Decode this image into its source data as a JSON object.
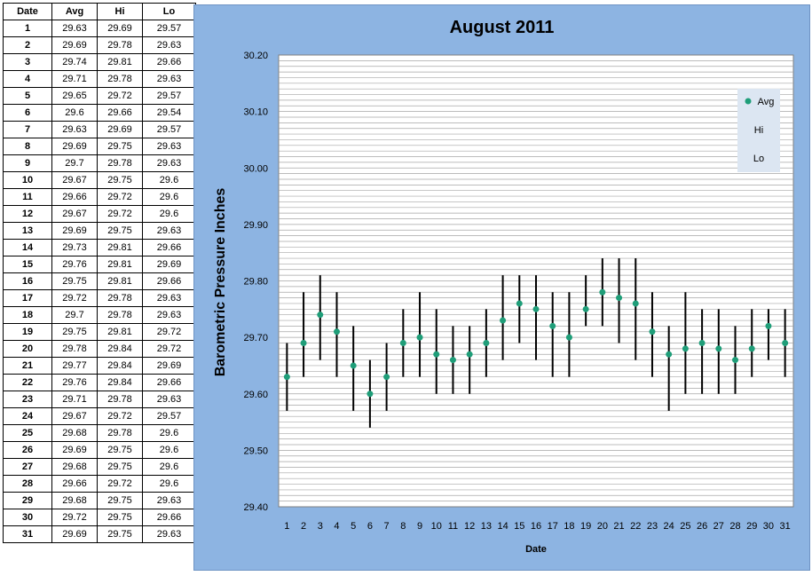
{
  "table": {
    "headers": [
      "Date",
      "Avg",
      "Hi",
      "Lo"
    ],
    "rows": [
      [
        "1",
        "29.63",
        "29.69",
        "29.57"
      ],
      [
        "2",
        "29.69",
        "29.78",
        "29.63"
      ],
      [
        "3",
        "29.74",
        "29.81",
        "29.66"
      ],
      [
        "4",
        "29.71",
        "29.78",
        "29.63"
      ],
      [
        "5",
        "29.65",
        "29.72",
        "29.57"
      ],
      [
        "6",
        "29.6",
        "29.66",
        "29.54"
      ],
      [
        "7",
        "29.63",
        "29.69",
        "29.57"
      ],
      [
        "8",
        "29.69",
        "29.75",
        "29.63"
      ],
      [
        "9",
        "29.7",
        "29.78",
        "29.63"
      ],
      [
        "10",
        "29.67",
        "29.75",
        "29.6"
      ],
      [
        "11",
        "29.66",
        "29.72",
        "29.6"
      ],
      [
        "12",
        "29.67",
        "29.72",
        "29.6"
      ],
      [
        "13",
        "29.69",
        "29.75",
        "29.63"
      ],
      [
        "14",
        "29.73",
        "29.81",
        "29.66"
      ],
      [
        "15",
        "29.76",
        "29.81",
        "29.69"
      ],
      [
        "16",
        "29.75",
        "29.81",
        "29.66"
      ],
      [
        "17",
        "29.72",
        "29.78",
        "29.63"
      ],
      [
        "18",
        "29.7",
        "29.78",
        "29.63"
      ],
      [
        "19",
        "29.75",
        "29.81",
        "29.72"
      ],
      [
        "20",
        "29.78",
        "29.84",
        "29.72"
      ],
      [
        "21",
        "29.77",
        "29.84",
        "29.69"
      ],
      [
        "22",
        "29.76",
        "29.84",
        "29.66"
      ],
      [
        "23",
        "29.71",
        "29.78",
        "29.63"
      ],
      [
        "24",
        "29.67",
        "29.72",
        "29.57"
      ],
      [
        "25",
        "29.68",
        "29.78",
        "29.6"
      ],
      [
        "26",
        "29.69",
        "29.75",
        "29.6"
      ],
      [
        "27",
        "29.68",
        "29.75",
        "29.6"
      ],
      [
        "28",
        "29.66",
        "29.72",
        "29.6"
      ],
      [
        "29",
        "29.68",
        "29.75",
        "29.63"
      ],
      [
        "30",
        "29.72",
        "29.75",
        "29.66"
      ],
      [
        "31",
        "29.69",
        "29.75",
        "29.63"
      ]
    ]
  },
  "chart_data": {
    "type": "scatter",
    "title": "August 2011",
    "xlabel": "Date",
    "ylabel": "Barometric Pressure Inches",
    "ylim": [
      29.4,
      30.2
    ],
    "yticks": [
      "29.40",
      "29.50",
      "29.60",
      "29.70",
      "29.80",
      "29.90",
      "30.00",
      "30.10",
      "30.20"
    ],
    "x": [
      1,
      2,
      3,
      4,
      5,
      6,
      7,
      8,
      9,
      10,
      11,
      12,
      13,
      14,
      15,
      16,
      17,
      18,
      19,
      20,
      21,
      22,
      23,
      24,
      25,
      26,
      27,
      28,
      29,
      30,
      31
    ],
    "series": [
      {
        "name": "Avg",
        "values": [
          29.63,
          29.69,
          29.74,
          29.71,
          29.65,
          29.6,
          29.63,
          29.69,
          29.7,
          29.67,
          29.66,
          29.67,
          29.69,
          29.73,
          29.76,
          29.75,
          29.72,
          29.7,
          29.75,
          29.78,
          29.77,
          29.76,
          29.71,
          29.67,
          29.68,
          29.69,
          29.68,
          29.66,
          29.68,
          29.72,
          29.69
        ]
      },
      {
        "name": "Hi",
        "values": [
          29.69,
          29.78,
          29.81,
          29.78,
          29.72,
          29.66,
          29.69,
          29.75,
          29.78,
          29.75,
          29.72,
          29.72,
          29.75,
          29.81,
          29.81,
          29.81,
          29.78,
          29.78,
          29.81,
          29.84,
          29.84,
          29.84,
          29.78,
          29.72,
          29.78,
          29.75,
          29.75,
          29.72,
          29.75,
          29.75,
          29.75
        ]
      },
      {
        "name": "Lo",
        "values": [
          29.57,
          29.63,
          29.66,
          29.63,
          29.57,
          29.54,
          29.57,
          29.63,
          29.63,
          29.6,
          29.6,
          29.6,
          29.63,
          29.66,
          29.69,
          29.66,
          29.63,
          29.63,
          29.72,
          29.72,
          29.69,
          29.66,
          29.63,
          29.57,
          29.6,
          29.6,
          29.6,
          29.6,
          29.63,
          29.66,
          29.63
        ]
      }
    ],
    "grid": true,
    "legend": "top-right",
    "colors": {
      "avg": "#1f9e79",
      "range": "#000000",
      "panel": "#8db4e2",
      "plot": "#ffffff",
      "grid": "#a6a6a6"
    }
  }
}
